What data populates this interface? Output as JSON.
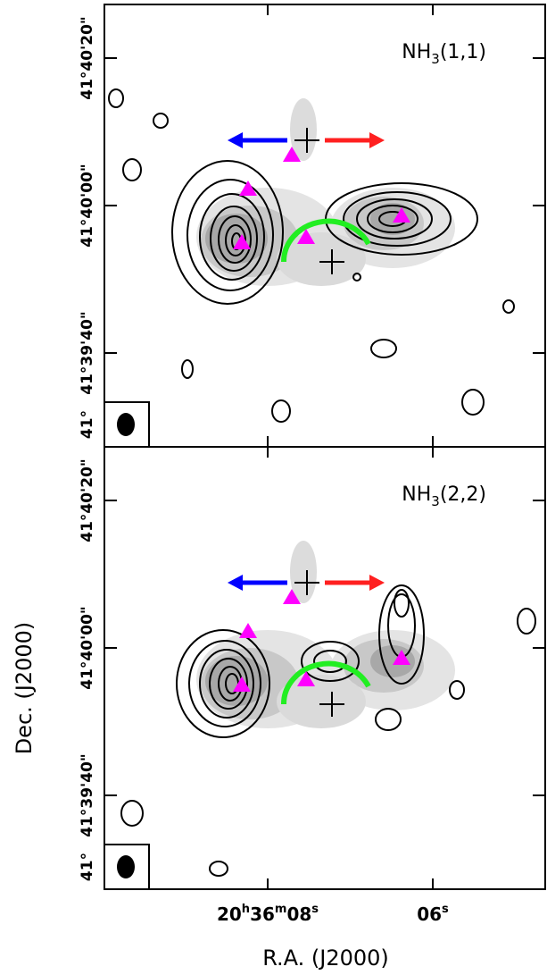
{
  "panels": [
    {
      "title": [
        "NH",
        "3",
        "(1,1)"
      ],
      "yticks": [
        "41°40'20\"",
        "41°40'00\"",
        "41°39'40\"",
        "41°"
      ]
    },
    {
      "title": [
        "NH",
        "3",
        "(2,2)"
      ],
      "yticks": [
        "41°40'20\"",
        "41°40'00\"",
        "41°39'40\"",
        "41°"
      ]
    }
  ],
  "xticks": [
    [
      "20",
      "h",
      "36",
      "m",
      "08",
      "s"
    ],
    [
      "06",
      "s"
    ]
  ],
  "xlabel": "R.A. (J2000)",
  "ylabel": "Dec. (J2000)"
}
